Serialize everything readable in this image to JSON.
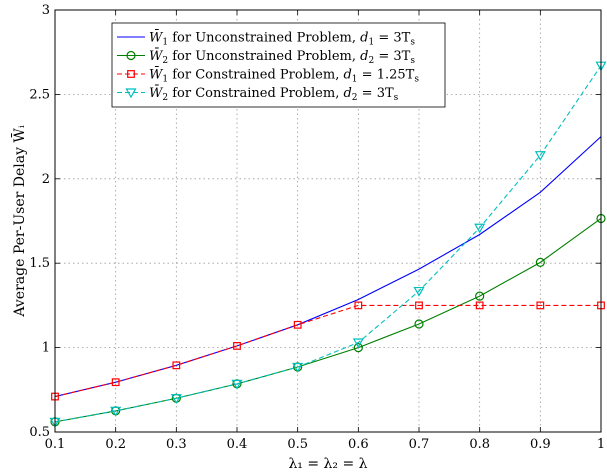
{
  "chart_data": {
    "type": "line",
    "xlabel": "λ₁ = λ₂ = λ",
    "ylabel": "Average Per-User Delay W̄ᵢ",
    "xlim": [
      0.1,
      1
    ],
    "ylim": [
      0.5,
      3
    ],
    "xticks": [
      "0.1",
      "0.2",
      "0.3",
      "0.4",
      "0.5",
      "0.6",
      "0.7",
      "0.8",
      "0.9",
      "1"
    ],
    "yticks": [
      "0.5",
      "1",
      "1.5",
      "2",
      "2.5",
      "3"
    ],
    "grid": true,
    "legend_position": "top-left",
    "series": [
      {
        "name": "W̄₁ for Unconstrained Problem, d₁ = 3Tₛ",
        "color": "#0000ff",
        "linestyle": "solid",
        "marker": "none",
        "x": [
          0.1,
          0.2,
          0.3,
          0.4,
          0.5,
          0.6,
          0.7,
          0.8,
          0.9,
          1.0
        ],
        "y": [
          0.71,
          0.795,
          0.895,
          1.01,
          1.135,
          1.285,
          1.465,
          1.67,
          1.92,
          2.25
        ]
      },
      {
        "name": "W̄₂ for Unconstrained Problem, d₂ = 3Tₛ",
        "color": "#008000",
        "linestyle": "solid",
        "marker": "circle",
        "x": [
          0.1,
          0.2,
          0.3,
          0.4,
          0.5,
          0.6,
          0.7,
          0.8,
          0.9,
          1.0
        ],
        "y": [
          0.56,
          0.625,
          0.7,
          0.785,
          0.885,
          1.0,
          1.14,
          1.305,
          1.505,
          1.765
        ]
      },
      {
        "name": "W̄₁ for Constrained Problem, d₁ = 1.25Tₛ",
        "color": "#ff0000",
        "linestyle": "dashed",
        "marker": "square",
        "x": [
          0.1,
          0.2,
          0.3,
          0.4,
          0.5,
          0.6,
          0.7,
          0.8,
          0.9,
          1.0
        ],
        "y": [
          0.71,
          0.795,
          0.895,
          1.01,
          1.135,
          1.25,
          1.25,
          1.25,
          1.25,
          1.25
        ]
      },
      {
        "name": "W̄₂ for Constrained Problem, d₂ = 3Tₛ",
        "color": "#00bfbf",
        "linestyle": "dashed",
        "marker": "triangle-down",
        "x": [
          0.1,
          0.2,
          0.3,
          0.4,
          0.5,
          0.6,
          0.7,
          0.8,
          0.9,
          1.0
        ],
        "y": [
          0.56,
          0.625,
          0.7,
          0.785,
          0.885,
          1.03,
          1.335,
          1.71,
          2.14,
          2.67
        ]
      }
    ],
    "legend": [
      {
        "symbol": "W̄",
        "sub": "1",
        "text": " for Unconstrained Problem, ",
        "param": "d",
        "psub": "1",
        "eq": " = 3T",
        "tsub": "s"
      },
      {
        "symbol": "W̄",
        "sub": "2",
        "text": " for Unconstrained Problem, ",
        "param": "d",
        "psub": "2",
        "eq": " = 3T",
        "tsub": "s"
      },
      {
        "symbol": "W̄",
        "sub": "1",
        "text": " for Constrained Problem, ",
        "param": "d",
        "psub": "1",
        "eq": " = 1.25T",
        "tsub": "s"
      },
      {
        "symbol": "W̄",
        "sub": "2",
        "text": " for Constrained Problem, ",
        "param": "d",
        "psub": "2",
        "eq": " = 3T",
        "tsub": "s"
      }
    ]
  }
}
